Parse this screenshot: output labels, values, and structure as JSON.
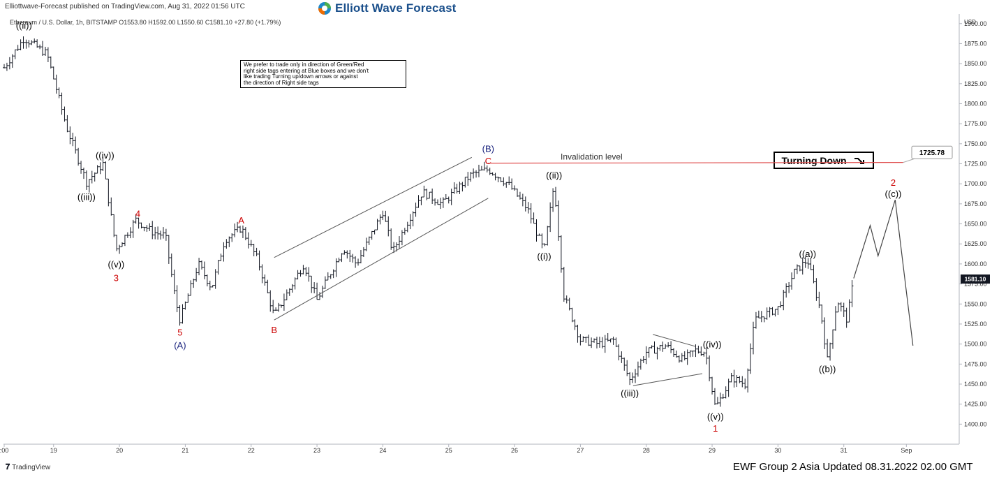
{
  "header": {
    "published": "Elliottwave-Forecast published on TradingView.com, Aug 31, 2022 01:56 UTC",
    "logo_text": "Elliott Wave Forecast",
    "symbol_info": "Ethereum / U.S. Dollar, 1h, BITSTAMP  O1553.80  H1592.00  L1550.60  C1581.10  +27.80 (+1.79%)"
  },
  "note_box": {
    "lines": [
      "We prefer to trade only in direction of Green/Red",
      "right side tags entering at Blue boxes and we don't",
      "like trading Turning up/down arrows or against",
      "the direction of Right side tags"
    ]
  },
  "turning_label": "Turning Down",
  "footer": {
    "tradingview": "TradingView",
    "update": "EWF Group 2 Asia Updated 08.31.2022 02.00 GMT"
  },
  "colors": {
    "bars": "#131722",
    "red_label": "#cc0000",
    "blue_label": "#1a237e",
    "invalidation_line": "#e05050",
    "channel": "#555555",
    "logo_text": "#1a4f8b"
  },
  "chart_data": {
    "type": "ohlc",
    "timeframe": "1h",
    "y_unit_label": "USD",
    "ylim": [
      1375,
      1912
    ],
    "y_ticks": [
      1400,
      1425,
      1450,
      1475,
      1500,
      1525,
      1550,
      1575,
      1600,
      1625,
      1650,
      1675,
      1700,
      1725,
      1750,
      1775,
      1800,
      1825,
      1850,
      1875,
      1900
    ],
    "x_ticks": [
      {
        "label": ":00",
        "day": 18.25
      },
      {
        "label": "19",
        "day": 19
      },
      {
        "label": "20",
        "day": 20
      },
      {
        "label": "21",
        "day": 21
      },
      {
        "label": "22",
        "day": 22
      },
      {
        "label": "23",
        "day": 23
      },
      {
        "label": "24",
        "day": 24
      },
      {
        "label": "25",
        "day": 25
      },
      {
        "label": "26",
        "day": 26
      },
      {
        "label": "27",
        "day": 27
      },
      {
        "label": "28",
        "day": 28
      },
      {
        "label": "29",
        "day": 29
      },
      {
        "label": "30",
        "day": 30
      },
      {
        "label": "31",
        "day": 31
      },
      {
        "label": "Sep",
        "day": 31.95
      }
    ],
    "last_price": "1581.10",
    "invalidation": {
      "label": "Invalidation level",
      "value": "1725.78",
      "price": 1725.78,
      "from_day": 25.6,
      "to_day": 31.9
    },
    "price_path": [
      [
        18.25,
        1845
      ],
      [
        18.55,
        1882
      ],
      [
        18.9,
        1862
      ],
      [
        19.2,
        1770
      ],
      [
        19.5,
        1702
      ],
      [
        19.75,
        1725
      ],
      [
        19.95,
        1618
      ],
      [
        20.25,
        1655
      ],
      [
        20.5,
        1640
      ],
      [
        20.7,
        1635
      ],
      [
        20.85,
        1555
      ],
      [
        20.92,
        1530
      ],
      [
        21.2,
        1600
      ],
      [
        21.4,
        1570
      ],
      [
        21.6,
        1630
      ],
      [
        21.85,
        1645
      ],
      [
        22.1,
        1605
      ],
      [
        22.35,
        1535
      ],
      [
        22.8,
        1600
      ],
      [
        23.0,
        1555
      ],
      [
        23.4,
        1620
      ],
      [
        23.6,
        1600
      ],
      [
        24.0,
        1665
      ],
      [
        24.15,
        1615
      ],
      [
        24.6,
        1690
      ],
      [
        24.9,
        1675
      ],
      [
        25.35,
        1712
      ],
      [
        25.6,
        1718
      ],
      [
        25.9,
        1700
      ],
      [
        26.2,
        1668
      ],
      [
        26.45,
        1615
      ],
      [
        26.6,
        1700
      ],
      [
        26.75,
        1560
      ],
      [
        27.0,
        1505
      ],
      [
        27.3,
        1500
      ],
      [
        27.5,
        1505
      ],
      [
        27.75,
        1455
      ],
      [
        28.0,
        1490
      ],
      [
        28.3,
        1498
      ],
      [
        28.55,
        1480
      ],
      [
        28.75,
        1492
      ],
      [
        28.9,
        1490
      ],
      [
        29.05,
        1420
      ],
      [
        29.3,
        1458
      ],
      [
        29.5,
        1450
      ],
      [
        29.65,
        1530
      ],
      [
        30.0,
        1545
      ],
      [
        30.25,
        1590
      ],
      [
        30.45,
        1605
      ],
      [
        30.65,
        1540
      ],
      [
        30.75,
        1480
      ],
      [
        30.9,
        1555
      ],
      [
        31.05,
        1530
      ],
      [
        31.15,
        1582
      ]
    ],
    "projection": [
      [
        31.15,
        1582
      ],
      [
        31.4,
        1648
      ],
      [
        31.52,
        1610
      ],
      [
        31.78,
        1680
      ],
      [
        32.05,
        1498
      ]
    ],
    "channel_lines": [
      {
        "from": [
          22.35,
          1608
        ],
        "to": [
          25.35,
          1733
        ]
      },
      {
        "from": [
          22.35,
          1530
        ],
        "to": [
          25.6,
          1682
        ]
      }
    ],
    "triangle_lines": [
      {
        "from": [
          28.1,
          1512
        ],
        "to": [
          28.75,
          1497
        ]
      },
      {
        "from": [
          27.8,
          1448
        ],
        "to": [
          28.85,
          1463
        ]
      }
    ],
    "wave_labels": [
      {
        "text": "((ii))",
        "day": 18.55,
        "price": 1898,
        "color": "black"
      },
      {
        "text": "((iv))",
        "day": 19.78,
        "price": 1736,
        "color": "black"
      },
      {
        "text": "((iii))",
        "day": 19.5,
        "price": 1684,
        "color": "black"
      },
      {
        "text": "4",
        "day": 20.28,
        "price": 1663,
        "color": "red"
      },
      {
        "text": "((v))",
        "day": 19.95,
        "price": 1600,
        "color": "black"
      },
      {
        "text": "3",
        "day": 19.95,
        "price": 1583,
        "color": "red"
      },
      {
        "text": "5",
        "day": 20.92,
        "price": 1515,
        "color": "red"
      },
      {
        "text": "(A)",
        "day": 20.92,
        "price": 1499,
        "color": "blue"
      },
      {
        "text": "A",
        "day": 21.85,
        "price": 1655,
        "color": "red"
      },
      {
        "text": "B",
        "day": 22.35,
        "price": 1518,
        "color": "red"
      },
      {
        "text": "(B)",
        "day": 25.6,
        "price": 1744,
        "color": "blue"
      },
      {
        "text": "C",
        "day": 25.6,
        "price": 1729,
        "color": "red"
      },
      {
        "text": "((ii))",
        "day": 26.6,
        "price": 1711,
        "color": "black"
      },
      {
        "text": "((i))",
        "day": 26.45,
        "price": 1610,
        "color": "black"
      },
      {
        "text": "((iii))",
        "day": 27.75,
        "price": 1439,
        "color": "black"
      },
      {
        "text": "((iv))",
        "day": 29.0,
        "price": 1500,
        "color": "black"
      },
      {
        "text": "((v))",
        "day": 29.05,
        "price": 1410,
        "color": "black"
      },
      {
        "text": "1",
        "day": 29.05,
        "price": 1395,
        "color": "red"
      },
      {
        "text": "((a))",
        "day": 30.45,
        "price": 1613,
        "color": "black"
      },
      {
        "text": "((b))",
        "day": 30.75,
        "price": 1469,
        "color": "black"
      },
      {
        "text": "2",
        "day": 31.75,
        "price": 1702,
        "color": "red"
      },
      {
        "text": "((c))",
        "day": 31.75,
        "price": 1688,
        "color": "black"
      }
    ]
  }
}
